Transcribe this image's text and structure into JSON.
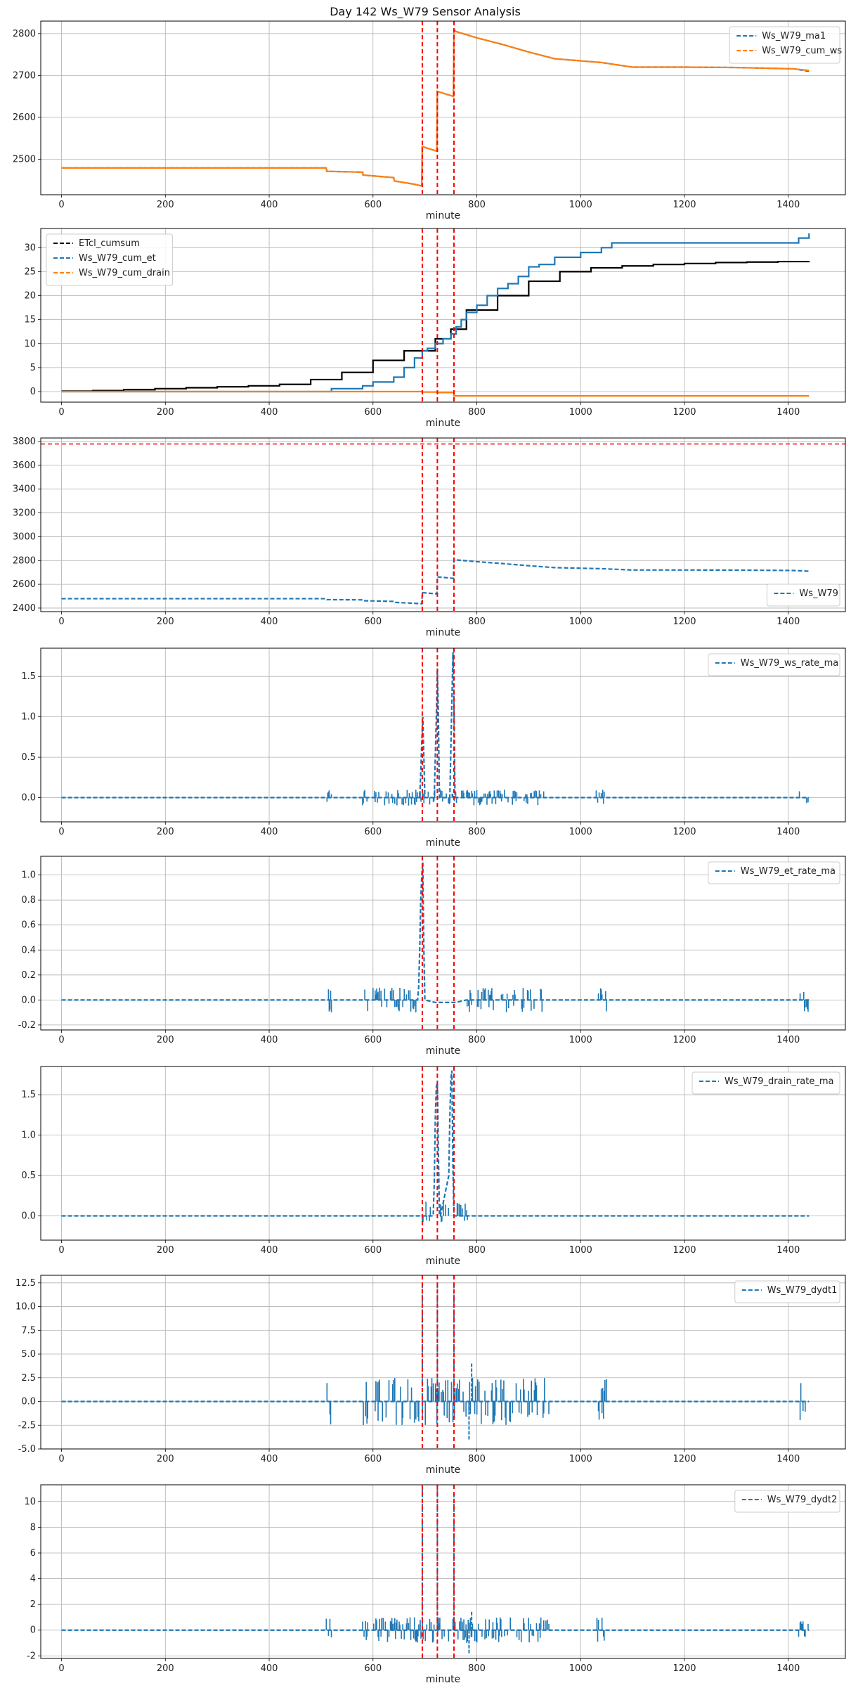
{
  "title": "Day 142 Ws_W79 Sensor Analysis",
  "colors": {
    "blue": "#1f77b4",
    "orange": "#ff7f0e",
    "black": "#000000",
    "event_red": "#ff0000",
    "grid": "#b0b0b0"
  },
  "events_minute": [
    695,
    724,
    756
  ],
  "chart_data": [
    {
      "type": "line",
      "xlabel": "minute",
      "xlim": [
        -40,
        1510
      ],
      "xticks": [
        0,
        200,
        400,
        600,
        800,
        1000,
        1200,
        1400
      ],
      "ylim": [
        2415,
        2830
      ],
      "yticks": [
        2500,
        2600,
        2700,
        2800
      ],
      "legend_loc": "upper right",
      "series": [
        {
          "name": "Ws_W79_ma1",
          "color": "blue",
          "style": "dashed",
          "legend": true,
          "x": [
            0,
            510,
            511,
            580,
            581,
            640,
            641,
            680,
            694,
            695,
            723,
            724,
            755,
            756,
            760,
            800,
            850,
            900,
            950,
            1040,
            1100,
            1200,
            1300,
            1410,
            1440
          ],
          "y": [
            2479,
            2479,
            2471,
            2469,
            2462,
            2456,
            2448,
            2440,
            2436,
            2530,
            2519,
            2662,
            2650,
            2810,
            2805,
            2790,
            2774,
            2756,
            2740,
            2731,
            2720,
            2720,
            2719,
            2716,
            2710
          ]
        },
        {
          "name": "Ws_W79_cum_ws",
          "color": "orange",
          "style": "solid",
          "legend": true,
          "x": [
            0,
            510,
            511,
            580,
            581,
            640,
            641,
            680,
            694,
            695,
            723,
            724,
            755,
            756,
            760,
            800,
            850,
            900,
            950,
            1040,
            1100,
            1200,
            1300,
            1410,
            1440
          ],
          "y": [
            2479,
            2479,
            2471,
            2469,
            2462,
            2456,
            2448,
            2440,
            2436,
            2530,
            2519,
            2662,
            2650,
            2810,
            2805,
            2790,
            2774,
            2756,
            2740,
            2731,
            2720,
            2720,
            2719,
            2716,
            2712
          ]
        }
      ]
    },
    {
      "type": "line",
      "xlabel": "minute",
      "xlim": [
        -40,
        1510
      ],
      "xticks": [
        0,
        200,
        400,
        600,
        800,
        1000,
        1200,
        1400
      ],
      "ylim": [
        -2.2,
        34
      ],
      "yticks": [
        0,
        5,
        10,
        15,
        20,
        25,
        30
      ],
      "legend_loc": "upper left",
      "series": [
        {
          "name": "ETcl_cumsum",
          "color": "black",
          "style": "step",
          "legend": true,
          "x": [
            0,
            60,
            120,
            180,
            240,
            300,
            360,
            420,
            480,
            540,
            600,
            660,
            720,
            750,
            780,
            840,
            900,
            960,
            1020,
            1080,
            1140,
            1200,
            1260,
            1320,
            1380,
            1440
          ],
          "y": [
            0.1,
            0.2,
            0.4,
            0.6,
            0.8,
            1.0,
            1.2,
            1.5,
            2.5,
            4.0,
            6.5,
            8.5,
            11.0,
            13.0,
            17.0,
            20.0,
            23.0,
            25.0,
            25.8,
            26.2,
            26.5,
            26.7,
            26.9,
            27.0,
            27.1,
            27.2
          ]
        },
        {
          "name": "Ws_W79_cum_et",
          "color": "blue",
          "style": "step",
          "legend": true,
          "x": [
            0,
            510,
            520,
            580,
            600,
            640,
            660,
            680,
            695,
            705,
            720,
            735,
            750,
            760,
            770,
            780,
            800,
            820,
            840,
            860,
            880,
            900,
            920,
            950,
            1000,
            1040,
            1060,
            1200,
            1400,
            1420,
            1440
          ],
          "y": [
            0,
            0,
            0.6,
            1.2,
            2.0,
            3.0,
            5.0,
            7.0,
            8.5,
            9.0,
            10.0,
            11.0,
            12.0,
            13.5,
            15.0,
            16.5,
            18.0,
            20.0,
            21.5,
            22.5,
            24.0,
            26.0,
            26.5,
            28.0,
            29.0,
            30.0,
            31.0,
            31.0,
            31.0,
            32.0,
            33.0
          ]
        },
        {
          "name": "Ws_W79_cum_drain",
          "color": "orange",
          "style": "step",
          "legend": true,
          "x": [
            0,
            694,
            695,
            724,
            756,
            1440
          ],
          "y": [
            0,
            0,
            -0.1,
            -0.2,
            -0.9,
            -0.9
          ]
        }
      ]
    },
    {
      "type": "line",
      "xlabel": "minute",
      "xlim": [
        -40,
        1510
      ],
      "xticks": [
        0,
        200,
        400,
        600,
        800,
        1000,
        1200,
        1400
      ],
      "ylim": [
        2370,
        3830
      ],
      "yticks": [
        2400,
        2600,
        2800,
        3000,
        3200,
        3400,
        3600,
        3800
      ],
      "legend_loc": "lower right",
      "hline": 3780,
      "series": [
        {
          "name": "Ws_W79",
          "color": "blue",
          "style": "dashed",
          "legend": true,
          "x": [
            0,
            510,
            511,
            580,
            581,
            640,
            641,
            680,
            694,
            695,
            723,
            724,
            755,
            756,
            760,
            800,
            850,
            900,
            950,
            1040,
            1100,
            1200,
            1300,
            1410,
            1440
          ],
          "y": [
            2479,
            2479,
            2471,
            2469,
            2462,
            2456,
            2448,
            2440,
            2436,
            2530,
            2519,
            2662,
            2650,
            2810,
            2805,
            2790,
            2774,
            2756,
            2740,
            2731,
            2720,
            2720,
            2719,
            2716,
            2710
          ]
        }
      ]
    },
    {
      "type": "line",
      "xlabel": "minute",
      "xlim": [
        -40,
        1510
      ],
      "xticks": [
        0,
        200,
        400,
        600,
        800,
        1000,
        1200,
        1400
      ],
      "ylim": [
        -0.3,
        1.85
      ],
      "yticks": [
        0.0,
        0.5,
        1.0,
        1.5
      ],
      "legend_loc": "upper right",
      "series": [
        {
          "name": "Ws_W79_ws_rate_ma",
          "color": "blue",
          "style": "dashed",
          "legend": true,
          "x": [
            0,
            690,
            692,
            694,
            696,
            698,
            700,
            718,
            720,
            722,
            724,
            726,
            728,
            748,
            750,
            752,
            754,
            756,
            758,
            1440
          ],
          "y": [
            0,
            0,
            0.3,
            0.7,
            1.0,
            0.5,
            0,
            0,
            0.5,
            1.0,
            1.6,
            1.0,
            0,
            0,
            0.6,
            1.2,
            1.8,
            1.2,
            0,
            0
          ]
        }
      ],
      "noise": {
        "ranges": [
          [
            510,
            520
          ],
          [
            580,
            590
          ],
          [
            600,
            720
          ],
          [
            730,
            930
          ],
          [
            1030,
            1050
          ],
          [
            1420,
            1440
          ]
        ],
        "amp": [
          -0.1,
          0.1
        ]
      }
    },
    {
      "type": "line",
      "xlabel": "minute",
      "xlim": [
        -40,
        1510
      ],
      "xticks": [
        0,
        200,
        400,
        600,
        800,
        1000,
        1200,
        1400
      ],
      "ylim": [
        -0.24,
        1.15
      ],
      "yticks": [
        -0.2,
        0.0,
        0.2,
        0.4,
        0.6,
        0.8,
        1.0
      ],
      "legend_loc": "upper right",
      "series": [
        {
          "name": "Ws_W79_et_rate_ma",
          "color": "blue",
          "style": "dashed",
          "legend": true,
          "x": [
            0,
            686,
            688,
            690,
            692,
            694,
            696,
            698,
            700,
            720,
            760,
            780,
            1440
          ],
          "y": [
            0,
            0,
            0.1,
            0.4,
            0.8,
            1.0,
            1.1,
            0.4,
            0,
            -0.02,
            -0.02,
            0,
            0
          ]
        }
      ],
      "noise": {
        "ranges": [
          [
            510,
            520
          ],
          [
            580,
            590
          ],
          [
            600,
            690
          ],
          [
            780,
            930
          ],
          [
            1030,
            1050
          ],
          [
            1420,
            1440
          ]
        ],
        "amp": [
          -0.1,
          0.1
        ]
      }
    },
    {
      "type": "line",
      "xlabel": "minute",
      "xlim": [
        -40,
        1510
      ],
      "xticks": [
        0,
        200,
        400,
        600,
        800,
        1000,
        1200,
        1400
      ],
      "ylim": [
        -0.3,
        1.85
      ],
      "yticks": [
        0.0,
        0.5,
        1.0,
        1.5
      ],
      "legend_loc": "upper right",
      "series": [
        {
          "name": "Ws_W79_drain_rate_ma",
          "color": "blue",
          "style": "dashed",
          "legend": true,
          "x": [
            0,
            716,
            718,
            720,
            722,
            724,
            726,
            728,
            730,
            746,
            748,
            750,
            752,
            754,
            756,
            758,
            1440
          ],
          "y": [
            0,
            0,
            0.4,
            1.2,
            1.6,
            1.65,
            0.8,
            0,
            0,
            0.5,
            1.2,
            1.7,
            1.8,
            0.6,
            0,
            0,
            0
          ]
        }
      ],
      "noise": {
        "ranges": [
          [
            695,
            716
          ],
          [
            730,
            746
          ],
          [
            758,
            785
          ]
        ],
        "amp": [
          -0.1,
          0.18
        ]
      }
    },
    {
      "type": "line",
      "xlabel": "minute",
      "xlim": [
        -40,
        1510
      ],
      "xticks": [
        0,
        200,
        400,
        600,
        800,
        1000,
        1200,
        1400
      ],
      "ylim": [
        -5,
        13.3
      ],
      "yticks": [
        -5.0,
        -2.5,
        0.0,
        2.5,
        5.0,
        7.5,
        10.0,
        12.5
      ],
      "ytick_labels": [
        "-5.0",
        "-2.5",
        "0.0",
        "2.5",
        "5.0",
        "7.5",
        "10.0",
        "12.5"
      ],
      "legend_loc": "upper right",
      "series": [
        {
          "name": "Ws_W79_dydt1",
          "color": "blue",
          "style": "dashed",
          "legend": true,
          "x": [
            0,
            1440
          ],
          "y": [
            0,
            0
          ]
        }
      ],
      "spikes": [
        [
          695,
          12.5
        ],
        [
          724,
          12.5
        ],
        [
          756,
          12.5
        ],
        [
          790,
          4.0
        ],
        [
          785,
          -4.0
        ]
      ],
      "noise": {
        "ranges": [
          [
            510,
            520
          ],
          [
            580,
            590
          ],
          [
            600,
            940
          ],
          [
            1030,
            1050
          ],
          [
            1420,
            1440
          ]
        ],
        "amp": [
          -2.5,
          2.5
        ]
      }
    },
    {
      "type": "line",
      "xlabel": "minute",
      "xlim": [
        -40,
        1510
      ],
      "xticks": [
        0,
        200,
        400,
        600,
        800,
        1000,
        1200,
        1400
      ],
      "ylim": [
        -2.2,
        11.3
      ],
      "yticks": [
        -2,
        0,
        2,
        4,
        6,
        8,
        10
      ],
      "legend_loc": "upper right",
      "series": [
        {
          "name": "Ws_W79_dydt2",
          "color": "blue",
          "style": "dashed",
          "legend": true,
          "x": [
            0,
            1440
          ],
          "y": [
            0,
            0
          ]
        }
      ],
      "spikes": [
        [
          695,
          11.0
        ],
        [
          724,
          11.0
        ],
        [
          756,
          10.5
        ],
        [
          790,
          1.5
        ],
        [
          785,
          -1.8
        ]
      ],
      "noise": {
        "ranges": [
          [
            510,
            520
          ],
          [
            580,
            590
          ],
          [
            600,
            940
          ],
          [
            1030,
            1050
          ],
          [
            1420,
            1440
          ]
        ],
        "amp": [
          -1.0,
          1.0
        ]
      }
    }
  ]
}
